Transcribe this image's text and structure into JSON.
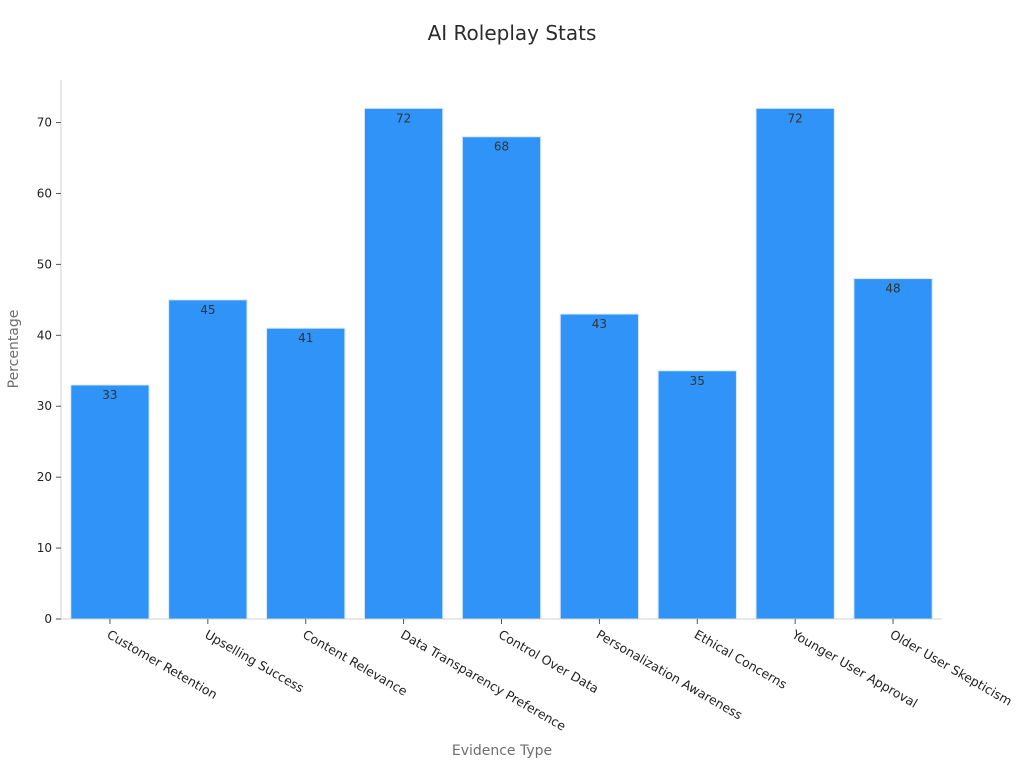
{
  "chart_data": {
    "type": "bar",
    "title": "AI Roleplay Stats",
    "xlabel": "Evidence Type",
    "ylabel": "Percentage",
    "categories": [
      "Customer Retention",
      "Upselling Success",
      "Content Relevance",
      "Data Transparency Preference",
      "Control Over Data",
      "Personalization Awareness",
      "Ethical Concerns",
      "Younger User Approval",
      "Older User Skepticism"
    ],
    "values": [
      33,
      45,
      41,
      72,
      68,
      43,
      35,
      72,
      48
    ],
    "ylim": [
      0,
      76
    ],
    "yticks": [
      0,
      10,
      20,
      30,
      40,
      50,
      60,
      70
    ],
    "grid": false,
    "legend": "none",
    "bar_color": "#2f93f7"
  }
}
